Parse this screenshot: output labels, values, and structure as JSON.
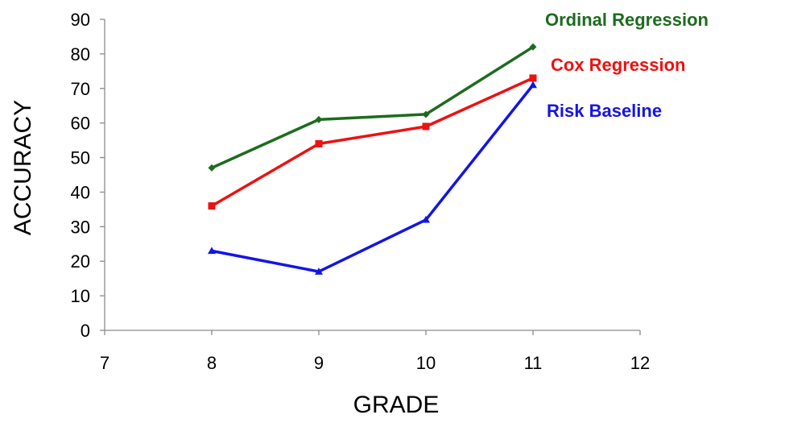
{
  "chart_data": {
    "type": "line",
    "xlabel": "GRADE",
    "ylabel": "ACCURACY",
    "xlim": [
      7,
      12
    ],
    "ylim": [
      0,
      90
    ],
    "x_ticks": [
      7,
      8,
      9,
      10,
      11,
      12
    ],
    "y_ticks": [
      0,
      10,
      20,
      30,
      40,
      50,
      60,
      70,
      80,
      90
    ],
    "grid": false,
    "legend_placement": "top-right",
    "x": [
      8,
      9,
      10,
      11
    ],
    "series": [
      {
        "name": "Ordinal Regression",
        "color": "#1e6b1e",
        "marker": "diamond",
        "values": [
          47,
          61,
          62.5,
          82
        ]
      },
      {
        "name": "Cox Regression",
        "color": "#ee1111",
        "marker": "square",
        "values": [
          36,
          54,
          59,
          73
        ]
      },
      {
        "name": "Risk Baseline",
        "color": "#1414e6",
        "marker": "triangle",
        "values": [
          23,
          17,
          32,
          71
        ]
      }
    ]
  }
}
